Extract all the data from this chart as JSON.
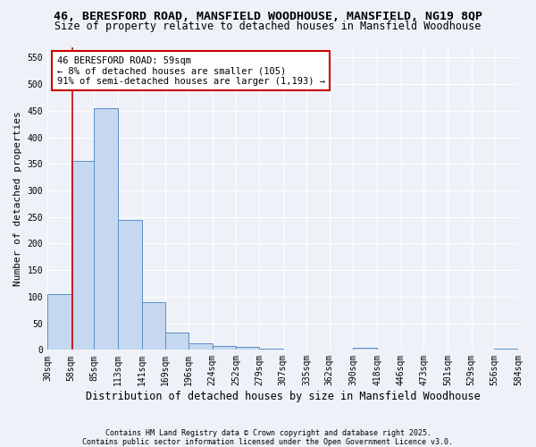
{
  "title1": "46, BERESFORD ROAD, MANSFIELD WOODHOUSE, MANSFIELD, NG19 8QP",
  "title2": "Size of property relative to detached houses in Mansfield Woodhouse",
  "xlabel": "Distribution of detached houses by size in Mansfield Woodhouse",
  "ylabel": "Number of detached properties",
  "bin_edges": [
    30,
    58,
    85,
    113,
    141,
    169,
    196,
    224,
    252,
    279,
    307,
    335,
    362,
    390,
    418,
    446,
    473,
    501,
    529,
    556,
    584
  ],
  "bar_heights": [
    105,
    355,
    455,
    245,
    90,
    33,
    13,
    8,
    5,
    3,
    1,
    0,
    0,
    4,
    0,
    0,
    0,
    0,
    0,
    3
  ],
  "bar_color": "#c5d8f0",
  "bar_edge_color": "#5b8dc8",
  "property_size": 59,
  "red_line_color": "#cc0000",
  "annotation_text": "46 BERESFORD ROAD: 59sqm\n← 8% of detached houses are smaller (105)\n91% of semi-detached houses are larger (1,193) →",
  "annotation_box_color": "#ffffff",
  "annotation_box_edge": "#cc0000",
  "ylim": [
    0,
    570
  ],
  "yticks": [
    0,
    50,
    100,
    150,
    200,
    250,
    300,
    350,
    400,
    450,
    500,
    550
  ],
  "background_color": "#eef2f8",
  "grid_color": "#ffffff",
  "footnote": "Contains HM Land Registry data © Crown copyright and database right 2025.\nContains public sector information licensed under the Open Government Licence v3.0.",
  "title1_fontsize": 9.5,
  "title2_fontsize": 8.5,
  "xlabel_fontsize": 8.5,
  "ylabel_fontsize": 8,
  "tick_fontsize": 7,
  "annot_fontsize": 7.5,
  "footnote_fontsize": 6
}
